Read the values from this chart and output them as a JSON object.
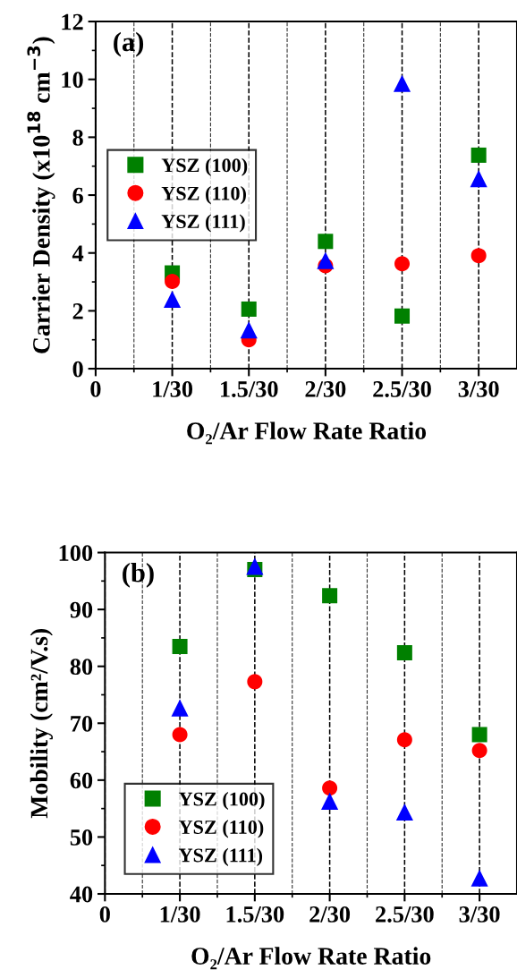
{
  "chart_data": [
    {
      "type": "scatter",
      "ylabel": "Carrier Density (x10$^{18}$ cm$^{−3}$)",
      "xlabel": "O₂/Ar Flow Rate Ratio",
      "annotations": [
        "(a)"
      ],
      "categories": [
        "0",
        "1/30",
        "1.5/30",
        "2/30",
        "2.5/30",
        "3/30"
      ],
      "ylim": [
        0,
        12
      ],
      "yticks": [
        0,
        2,
        4,
        6,
        8,
        10,
        12
      ],
      "grid": "x",
      "legend": "left",
      "line_style": "dashed",
      "series": [
        {
          "name": "YSZ (100)",
          "color": "#008000",
          "marker": "square",
          "values": [
            null,
            3.31,
            2.06,
            4.4,
            1.82,
            7.38
          ]
        },
        {
          "name": "YSZ (110)",
          "color": "#ff0000",
          "marker": "circle",
          "values": [
            null,
            3.02,
            1.0,
            3.56,
            3.63,
            3.91
          ]
        },
        {
          "name": "YSZ (111)",
          "color": "#0000ff",
          "marker": "triangle",
          "values": [
            null,
            2.4,
            1.34,
            3.74,
            9.86,
            6.57
          ]
        }
      ]
    },
    {
      "type": "scatter",
      "ylabel": "Mobility (cm²/V.s)",
      "xlabel": "O₂/Ar Flow Rate Ratio",
      "annotations": [
        "(b)"
      ],
      "categories": [
        "0",
        "1/30",
        "1.5/30",
        "2/30",
        "2.5/30",
        "3/30"
      ],
      "ylim": [
        40,
        100
      ],
      "yticks": [
        40,
        50,
        60,
        70,
        80,
        90,
        100
      ],
      "grid": "x",
      "legend": "bottom left",
      "line_style": "dashed",
      "series": [
        {
          "name": "YSZ (100)",
          "color": "#008000",
          "marker": "square",
          "values": [
            null,
            83.5,
            97.0,
            92.4,
            82.4,
            68.0
          ]
        },
        {
          "name": "YSZ (110)",
          "color": "#ff0000",
          "marker": "circle",
          "values": [
            null,
            68.0,
            77.3,
            58.6,
            67.1,
            65.2
          ]
        },
        {
          "name": "YSZ (111)",
          "color": "#0000ff",
          "marker": "triangle",
          "values": [
            null,
            72.7,
            97.6,
            56.3,
            54.4,
            42.8
          ]
        }
      ]
    }
  ]
}
